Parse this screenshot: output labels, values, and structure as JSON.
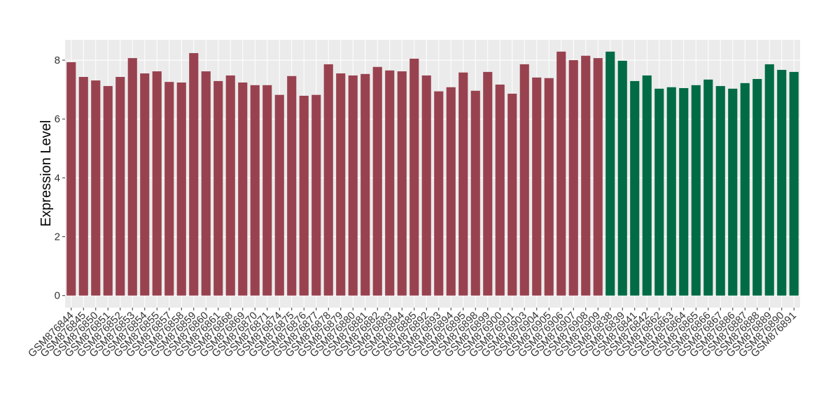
{
  "chart_data": {
    "type": "bar",
    "y_label": "Expression Level",
    "categories": [
      "GSM876844",
      "GSM876845",
      "GSM876850",
      "GSM876851",
      "GSM876852",
      "GSM876853",
      "GSM876854",
      "GSM876855",
      "GSM876857",
      "GSM876858",
      "GSM876859",
      "GSM876860",
      "GSM876861",
      "GSM876868",
      "GSM876869",
      "GSM876870",
      "GSM876871",
      "GSM876874",
      "GSM876875",
      "GSM876876",
      "GSM876877",
      "GSM876878",
      "GSM876879",
      "GSM876880",
      "GSM876881",
      "GSM876882",
      "GSM876883",
      "GSM876884",
      "GSM876885",
      "GSM876892",
      "GSM876893",
      "GSM876894",
      "GSM876895",
      "GSM876898",
      "GSM876899",
      "GSM876900",
      "GSM876901",
      "GSM876903",
      "GSM876904",
      "GSM876905",
      "GSM876906",
      "GSM876907",
      "GSM876908",
      "GSM876909",
      "GSM876838",
      "GSM876839",
      "GSM876841",
      "GSM876842",
      "GSM876862",
      "GSM876863",
      "GSM876864",
      "GSM876865",
      "GSM876866",
      "GSM876867",
      "GSM876886",
      "GSM876887",
      "GSM876888",
      "GSM876889",
      "GSM876890",
      "GSM876891"
    ],
    "values": [
      7.93,
      7.43,
      7.31,
      7.12,
      7.43,
      8.07,
      7.55,
      7.62,
      7.26,
      7.24,
      8.24,
      7.62,
      7.29,
      7.48,
      7.24,
      7.15,
      7.15,
      6.82,
      7.46,
      6.79,
      6.82,
      7.86,
      7.55,
      7.48,
      7.53,
      7.77,
      7.65,
      7.62,
      8.05,
      7.48,
      6.94,
      7.08,
      7.58,
      6.96,
      7.6,
      7.17,
      6.86,
      7.86,
      7.41,
      7.39,
      8.29,
      8.0,
      8.15,
      8.07,
      8.29,
      7.98,
      7.29,
      7.48,
      7.03,
      7.08,
      7.05,
      7.15,
      7.34,
      7.12,
      7.03,
      7.22,
      7.36,
      7.86,
      7.67,
      7.6
    ],
    "colors": [
      "#99424f",
      "#99424f",
      "#99424f",
      "#99424f",
      "#99424f",
      "#99424f",
      "#99424f",
      "#99424f",
      "#99424f",
      "#99424f",
      "#99424f",
      "#99424f",
      "#99424f",
      "#99424f",
      "#99424f",
      "#99424f",
      "#99424f",
      "#99424f",
      "#99424f",
      "#99424f",
      "#99424f",
      "#99424f",
      "#99424f",
      "#99424f",
      "#99424f",
      "#99424f",
      "#99424f",
      "#99424f",
      "#99424f",
      "#99424f",
      "#99424f",
      "#99424f",
      "#99424f",
      "#99424f",
      "#99424f",
      "#99424f",
      "#99424f",
      "#99424f",
      "#99424f",
      "#99424f",
      "#99424f",
      "#99424f",
      "#99424f",
      "#99424f",
      "#006b45",
      "#006b45",
      "#006b45",
      "#006b45",
      "#006b45",
      "#006b45",
      "#006b45",
      "#006b45",
      "#006b45",
      "#006b45",
      "#006b45",
      "#006b45",
      "#006b45",
      "#006b45",
      "#006b45",
      "#006b45"
    ],
    "ylim": [
      -0.41,
      8.69
    ],
    "yticks": [
      0,
      2,
      4,
      6,
      8
    ],
    "grid": true
  }
}
